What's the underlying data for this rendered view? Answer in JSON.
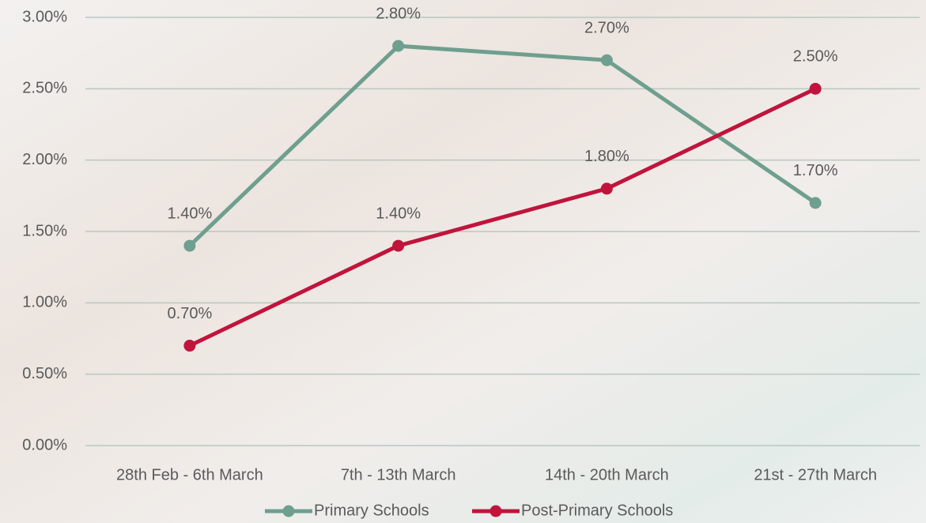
{
  "chart_data": {
    "type": "line",
    "categories": [
      "28th Feb - 6th March",
      "7th - 13th March",
      "14th - 20th March",
      "21st - 27th March"
    ],
    "series": [
      {
        "name": "Primary Schools",
        "color": "#6e9f8f",
        "values": [
          1.4,
          2.8,
          2.7,
          1.7
        ],
        "value_labels": [
          "1.40%",
          "2.80%",
          "2.70%",
          "1.70%"
        ]
      },
      {
        "name": "Post-Primary Schools",
        "color": "#c0143c",
        "values": [
          0.7,
          1.4,
          1.8,
          2.5
        ],
        "value_labels": [
          "0.70%",
          "1.40%",
          "1.80%",
          "2.50%"
        ]
      }
    ],
    "ylim": [
      0,
      3
    ],
    "yticks": [
      {
        "value": 0,
        "label": "0.00%"
      },
      {
        "value": 0.5,
        "label": "0.50%"
      },
      {
        "value": 1,
        "label": "1.00%"
      },
      {
        "value": 1.5,
        "label": "1.50%"
      },
      {
        "value": 2,
        "label": "2.00%"
      },
      {
        "value": 2.5,
        "label": "2.50%"
      },
      {
        "value": 3,
        "label": "3.00%"
      }
    ],
    "grid": true,
    "legend": "bottom"
  }
}
